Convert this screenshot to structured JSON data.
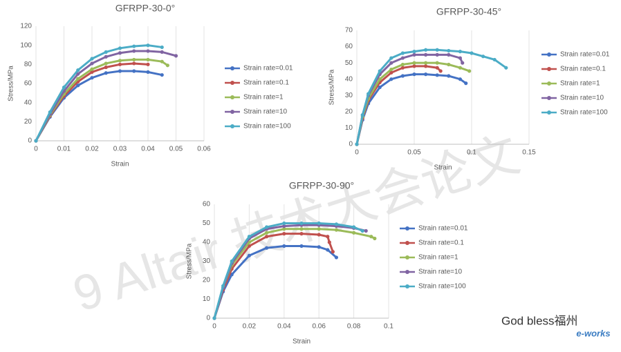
{
  "chart_data": [
    {
      "type": "line",
      "title": "GFRPP-30-0°",
      "x_label": "Strain",
      "y_label": "Stress/MPa",
      "xlim": [
        0,
        0.06
      ],
      "xticks": [
        0,
        0.01,
        0.02,
        0.03,
        0.04,
        0.05,
        0.06
      ],
      "ylim": [
        0,
        120
      ],
      "yticks": [
        0,
        20,
        40,
        60,
        80,
        100,
        120
      ],
      "grid": "x",
      "legend": "right",
      "series": [
        {
          "name": "Strain rate=0.01",
          "color": "#4472c4",
          "x": [
            0,
            0.005,
            0.01,
            0.015,
            0.02,
            0.025,
            0.03,
            0.035,
            0.04,
            0.045
          ],
          "values": [
            0,
            25,
            45,
            58,
            66,
            71,
            73,
            73,
            72,
            69
          ]
        },
        {
          "name": "Strain rate=0.1",
          "color": "#c0504d",
          "x": [
            0,
            0.005,
            0.01,
            0.015,
            0.02,
            0.025,
            0.03,
            0.035,
            0.04
          ],
          "values": [
            0,
            26,
            47,
            62,
            72,
            77,
            80,
            81,
            80
          ]
        },
        {
          "name": "Strain rate=1",
          "color": "#9bbb59",
          "x": [
            0,
            0.005,
            0.01,
            0.015,
            0.02,
            0.025,
            0.03,
            0.035,
            0.04,
            0.045,
            0.047
          ],
          "values": [
            0,
            27,
            49,
            65,
            75,
            81,
            84,
            85,
            85,
            83,
            79
          ]
        },
        {
          "name": "Strain rate=10",
          "color": "#8064a2",
          "x": [
            0,
            0.005,
            0.01,
            0.015,
            0.02,
            0.025,
            0.03,
            0.035,
            0.04,
            0.045,
            0.05
          ],
          "values": [
            0,
            28,
            52,
            70,
            81,
            88,
            92,
            94,
            94,
            93,
            89
          ]
        },
        {
          "name": "Strain rate=100",
          "color": "#4bacc6",
          "x": [
            0,
            0.005,
            0.01,
            0.015,
            0.02,
            0.025,
            0.03,
            0.035,
            0.04,
            0.045
          ],
          "values": [
            0,
            30,
            56,
            74,
            86,
            93,
            97,
            99,
            100,
            98
          ]
        }
      ]
    },
    {
      "type": "line",
      "title": "GFRPP-30-45°",
      "x_label": "Strain",
      "y_label": "Stress/MPa",
      "xlim": [
        0,
        0.15
      ],
      "xticks": [
        0,
        0.05,
        0.1,
        0.15
      ],
      "ylim": [
        0,
        70
      ],
      "yticks": [
        0,
        10,
        20,
        30,
        40,
        50,
        60,
        70
      ],
      "grid": "x",
      "legend": "right",
      "series": [
        {
          "name": "Strain rate=0.01",
          "color": "#4472c4",
          "x": [
            0,
            0.005,
            0.01,
            0.02,
            0.03,
            0.04,
            0.05,
            0.06,
            0.07,
            0.08,
            0.09,
            0.095
          ],
          "values": [
            0,
            15,
            25,
            35,
            40,
            42,
            43,
            43,
            42.5,
            42,
            40,
            37.5
          ]
        },
        {
          "name": "Strain rate=0.1",
          "color": "#c0504d",
          "x": [
            0,
            0.005,
            0.01,
            0.02,
            0.03,
            0.04,
            0.05,
            0.06,
            0.07,
            0.073
          ],
          "values": [
            0,
            16,
            27,
            38,
            44,
            47,
            48,
            48,
            47,
            45
          ]
        },
        {
          "name": "Strain rate=1",
          "color": "#9bbb59",
          "x": [
            0,
            0.005,
            0.01,
            0.02,
            0.03,
            0.04,
            0.05,
            0.06,
            0.07,
            0.08,
            0.09,
            0.098
          ],
          "values": [
            0,
            17,
            28,
            40,
            46,
            49,
            50,
            50,
            50,
            49,
            47,
            45
          ]
        },
        {
          "name": "Strain rate=10",
          "color": "#8064a2",
          "x": [
            0,
            0.005,
            0.01,
            0.02,
            0.03,
            0.04,
            0.05,
            0.06,
            0.07,
            0.08,
            0.09,
            0.092
          ],
          "values": [
            0,
            18,
            30,
            43,
            50,
            53,
            55,
            55,
            55,
            55,
            53,
            50
          ]
        },
        {
          "name": "Strain rate=100",
          "color": "#4bacc6",
          "x": [
            0,
            0.005,
            0.01,
            0.02,
            0.03,
            0.04,
            0.05,
            0.06,
            0.07,
            0.08,
            0.09,
            0.1,
            0.11,
            0.12,
            0.13
          ],
          "values": [
            0,
            18,
            31,
            45,
            53,
            56,
            57,
            58,
            58,
            57.5,
            57,
            56,
            54,
            52,
            47
          ]
        }
      ]
    },
    {
      "type": "line",
      "title": "GFRPP-30-90°",
      "x_label": "Strain",
      "y_label": "Stress/MPa",
      "xlim": [
        0,
        0.1
      ],
      "xticks": [
        0,
        0.02,
        0.04,
        0.06,
        0.08,
        0.1
      ],
      "ylim": [
        0,
        60
      ],
      "yticks": [
        0,
        10,
        20,
        30,
        40,
        50,
        60
      ],
      "grid": "x",
      "legend": "right",
      "series": [
        {
          "name": "Strain rate=0.01",
          "color": "#4472c4",
          "x": [
            0,
            0.005,
            0.01,
            0.02,
            0.03,
            0.04,
            0.05,
            0.06,
            0.065,
            0.07
          ],
          "values": [
            0,
            14,
            23,
            33,
            37,
            38,
            38,
            37.5,
            36,
            32
          ]
        },
        {
          "name": "Strain rate=0.1",
          "color": "#c0504d",
          "x": [
            0,
            0.005,
            0.01,
            0.02,
            0.03,
            0.04,
            0.05,
            0.06,
            0.065,
            0.066,
            0.068
          ],
          "values": [
            0,
            15,
            26,
            38,
            43,
            44.5,
            44.5,
            44,
            43,
            40,
            35
          ]
        },
        {
          "name": "Strain rate=1",
          "color": "#9bbb59",
          "x": [
            0,
            0.005,
            0.01,
            0.02,
            0.03,
            0.04,
            0.05,
            0.06,
            0.07,
            0.08,
            0.09,
            0.092
          ],
          "values": [
            0,
            16,
            28,
            40,
            45,
            47,
            47,
            47,
            46.5,
            45,
            43,
            42
          ]
        },
        {
          "name": "Strain rate=10",
          "color": "#8064a2",
          "x": [
            0,
            0.005,
            0.01,
            0.02,
            0.03,
            0.04,
            0.05,
            0.06,
            0.07,
            0.08,
            0.087
          ],
          "values": [
            0,
            16,
            29,
            42,
            47,
            48.5,
            49,
            49,
            48.5,
            47.5,
            46
          ]
        },
        {
          "name": "Strain rate=100",
          "color": "#4bacc6",
          "x": [
            0,
            0.005,
            0.01,
            0.02,
            0.03,
            0.04,
            0.05,
            0.06,
            0.07,
            0.08,
            0.085
          ],
          "values": [
            0,
            17,
            30,
            43,
            48,
            50,
            50,
            50,
            49.5,
            48,
            46
          ]
        }
      ]
    }
  ],
  "watermark": {
    "text": "9 Altair 技术大会论文",
    "caption": "God bless福州",
    "logo": "e-works"
  }
}
